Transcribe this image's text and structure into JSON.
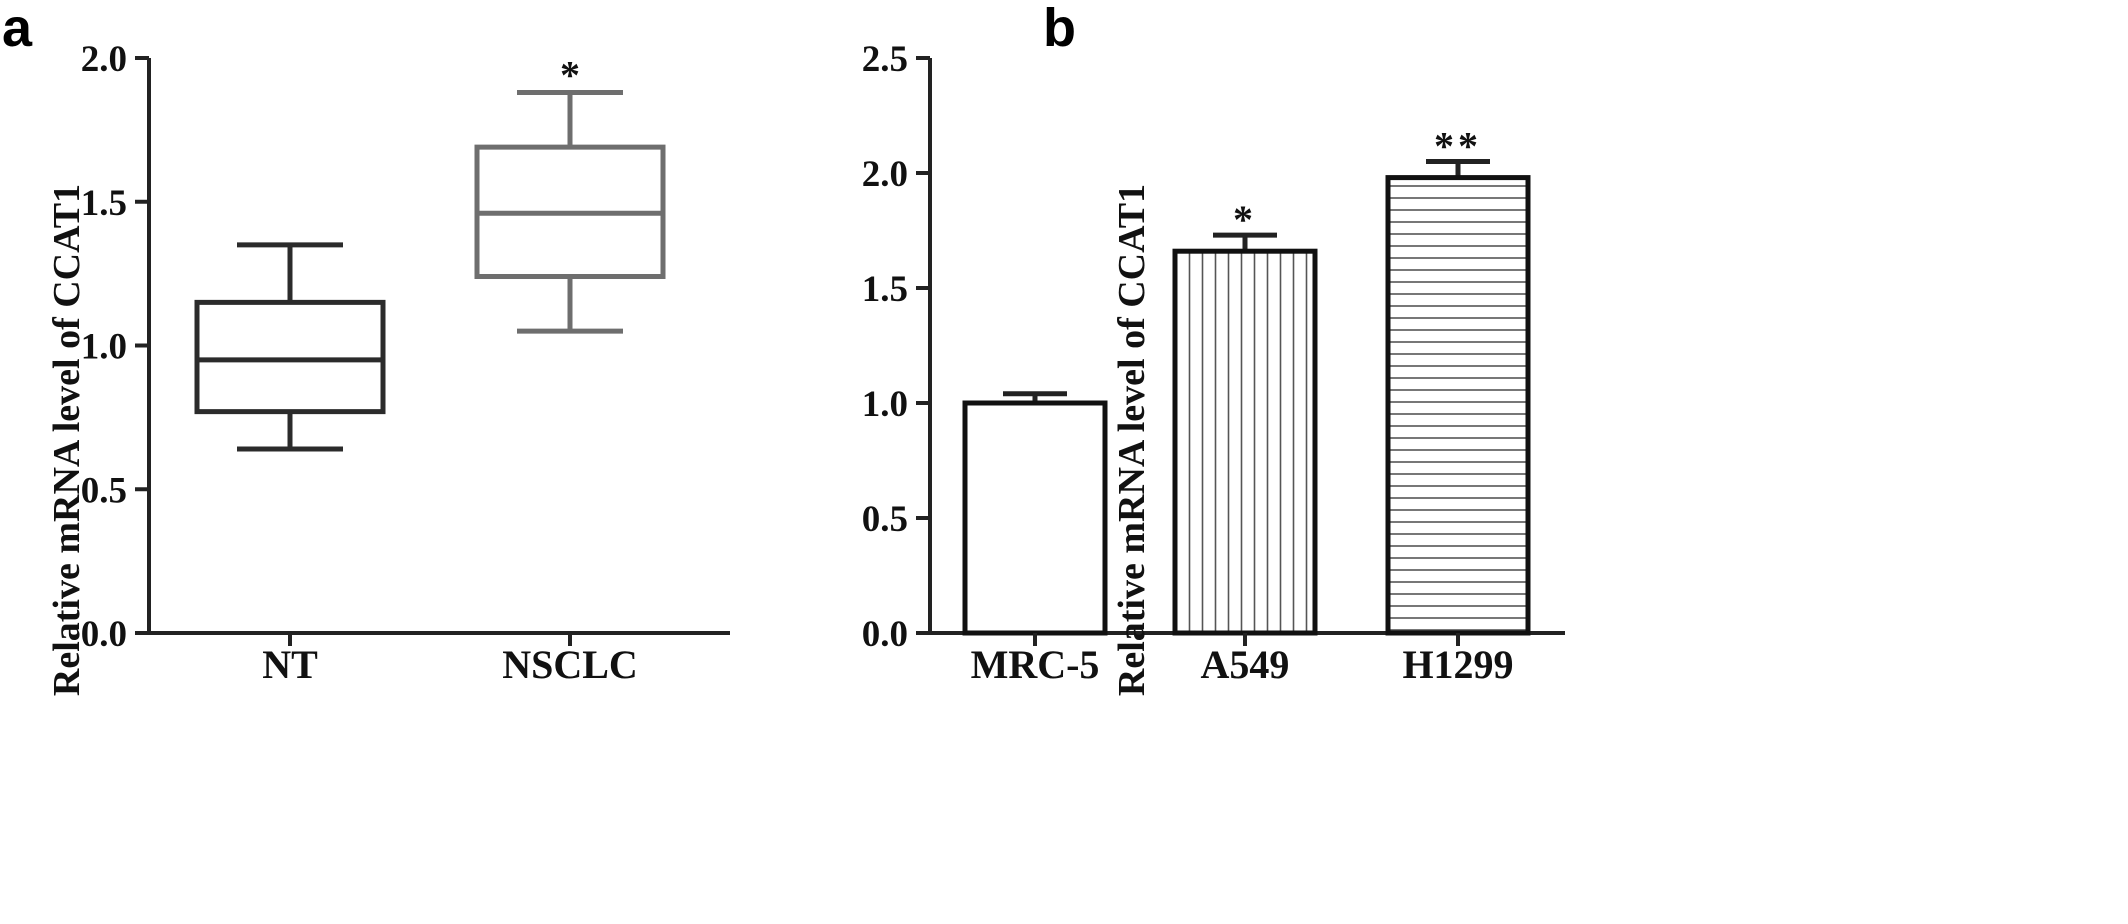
{
  "chart_data": [
    {
      "panel": "a",
      "type": "box",
      "ylabel": "Relative mRNA level of CCAT1",
      "ylim": [
        0,
        2.0
      ],
      "yticks": [
        "0.0",
        "0.5",
        "1.0",
        "1.5",
        "2.0"
      ],
      "categories": [
        "NT",
        "NSCLC"
      ],
      "boxes": [
        {
          "name": "NT",
          "min": 0.64,
          "q1": 0.77,
          "median": 0.95,
          "q3": 1.15,
          "max": 1.35,
          "color": "#2b2b2b",
          "sig": ""
        },
        {
          "name": "NSCLC",
          "min": 1.05,
          "q1": 1.24,
          "median": 1.46,
          "q3": 1.69,
          "max": 1.88,
          "color": "#6e6e6e",
          "sig": "*"
        }
      ]
    },
    {
      "panel": "b",
      "type": "bar",
      "ylabel": "Relative mRNA level of CCAT1",
      "ylim": [
        0,
        2.5
      ],
      "yticks": [
        "0.0",
        "0.5",
        "1.0",
        "1.5",
        "2.0",
        "2.5"
      ],
      "categories": [
        "MRC-5",
        "A549",
        "H1299"
      ],
      "values": [
        1.0,
        1.66,
        1.98
      ],
      "errors": [
        0.04,
        0.07,
        0.07
      ],
      "patterns": [
        "none",
        "vertical-lines",
        "horizontal-lines"
      ],
      "sig": [
        "",
        "*",
        "**"
      ]
    }
  ]
}
